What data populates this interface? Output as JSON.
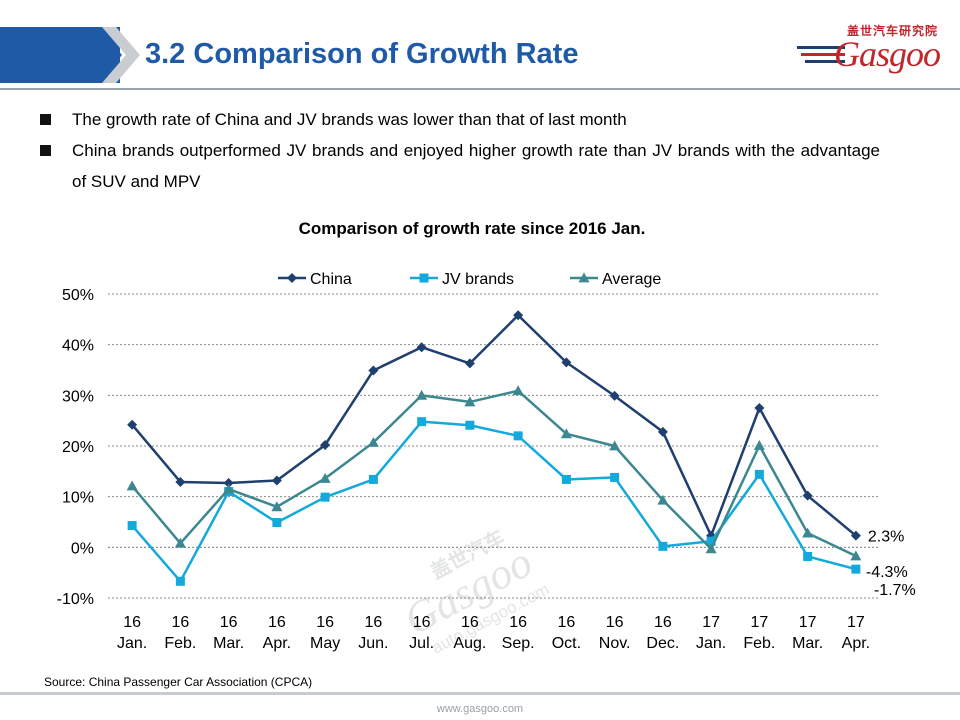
{
  "header": {
    "title": "3.2 Comparison of Growth Rate",
    "logo_cn": "盖世汽车研究院",
    "logo_text": "Gasgoo",
    "accent": "#1f5aa6",
    "brand_red": "#c0272d"
  },
  "bullets": [
    "The growth rate of China and JV brands was lower than that of last month",
    "China brands outperformed JV brands and enjoyed higher growth rate than JV brands with the advantage of SUV and MPV"
  ],
  "chart_data": {
    "type": "line",
    "title": "Comparison of growth rate since 2016 Jan.",
    "categories": [
      [
        "16",
        "Jan."
      ],
      [
        "16",
        "Feb."
      ],
      [
        "16",
        "Mar."
      ],
      [
        "16",
        "Apr."
      ],
      [
        "16",
        "May"
      ],
      [
        "16",
        "Jun."
      ],
      [
        "16",
        "Jul."
      ],
      [
        "16",
        "Aug."
      ],
      [
        "16",
        "Sep."
      ],
      [
        "16",
        "Oct."
      ],
      [
        "16",
        "Nov."
      ],
      [
        "16",
        "Dec."
      ],
      [
        "17",
        "Jan."
      ],
      [
        "17",
        "Feb."
      ],
      [
        "17",
        "Mar."
      ],
      [
        "17",
        "Apr."
      ]
    ],
    "ylim": [
      -10,
      50
    ],
    "yticks": [
      "-10%",
      "0%",
      "10%",
      "20%",
      "30%",
      "40%",
      "50%"
    ],
    "ytick_values": [
      -10,
      0,
      10,
      20,
      30,
      40,
      50
    ],
    "grid": true,
    "legend_position": "top",
    "series": [
      {
        "name": "China",
        "color": "#1f3f6e",
        "marker": "diamond",
        "values": [
          24.2,
          12.9,
          12.7,
          13.2,
          20.2,
          34.9,
          39.5,
          36.3,
          45.8,
          36.5,
          29.9,
          22.8,
          2.3,
          27.5,
          10.2,
          2.3
        ]
      },
      {
        "name": "JV brands",
        "color": "#14a9dc",
        "marker": "square",
        "values": [
          4.3,
          -6.7,
          11.0,
          4.9,
          9.9,
          13.4,
          24.8,
          24.1,
          22.0,
          13.4,
          13.8,
          0.2,
          1.2,
          14.4,
          -1.8,
          -4.3
        ]
      },
      {
        "name": "Average",
        "color": "#3d8890",
        "marker": "triangle",
        "values": [
          12.1,
          0.8,
          11.5,
          8.0,
          13.6,
          20.7,
          30.0,
          28.7,
          30.9,
          22.4,
          20.0,
          9.3,
          -0.3,
          20.1,
          2.8,
          -1.7
        ]
      }
    ],
    "end_labels": [
      "2.3%",
      "-4.3%",
      "-1.7%"
    ],
    "watermark": [
      "盖世汽车",
      "Gasgoo",
      "auto.gasgoo.com"
    ]
  },
  "source": "Source: China Passenger Car Association (CPCA)",
  "footer": "www.gasgoo.com"
}
